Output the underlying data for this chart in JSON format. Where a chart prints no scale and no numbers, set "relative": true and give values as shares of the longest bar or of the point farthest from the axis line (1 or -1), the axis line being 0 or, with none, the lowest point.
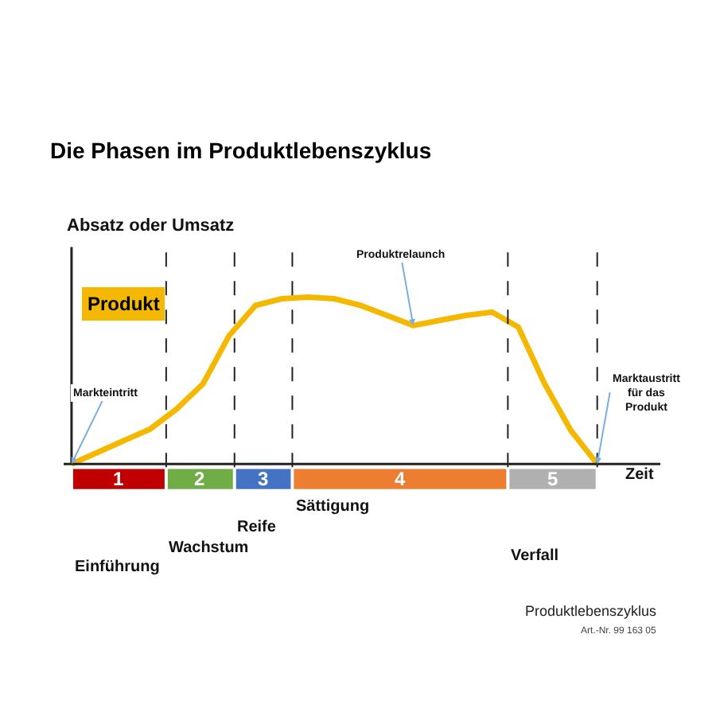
{
  "chart_data": {
    "type": "line",
    "title": "Die Phasen im Produktlebenszyklus",
    "ylabel": "Absatz oder Umsatz",
    "xlabel": "Zeit",
    "relative": true,
    "marker": "none",
    "line_style": "solid",
    "categories": [
      null,
      null,
      null,
      null,
      null,
      null,
      null,
      null,
      null,
      null,
      null,
      null,
      null,
      null,
      null,
      null,
      null,
      null,
      null,
      null,
      null
    ],
    "series": [
      {
        "color": "#f5b800",
        "values": [
          0,
          0.07,
          0.14,
          0.21,
          0.33,
          0.48,
          0.77,
          0.95,
          0.99,
          1,
          0.99,
          0.95,
          0.89,
          0.83,
          0.86,
          0.89,
          0.91,
          0.82,
          0.48,
          0.2,
          0
        ]
      }
    ],
    "annotations": [
      "Produkt",
      "Markteintritt",
      "Produktrelaunch",
      "Marktaustritt für das Produkt",
      "1",
      "2",
      "3",
      "4",
      "5",
      "Einführung",
      "Wachstum",
      "Reife",
      "Sättigung",
      "Verfall",
      "Produktlebenszyklus",
      "Art.-Nr. 99 163 05"
    ]
  }
}
